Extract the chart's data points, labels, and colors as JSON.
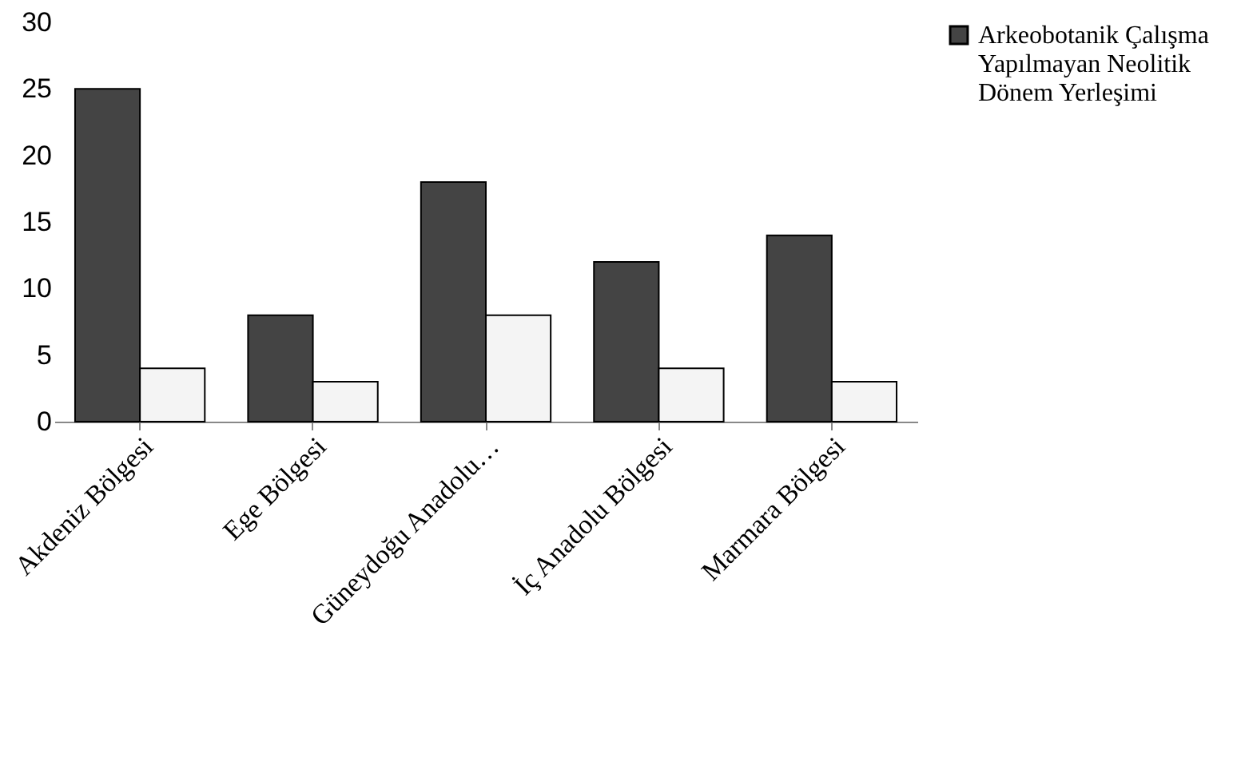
{
  "chart_data": {
    "type": "bar",
    "categories": [
      "Akdeniz Bölgesi",
      "Ege Bölgesi",
      "Güneydoğu Anadolu…",
      "İç Anadolu Bölgesi",
      "Marmara Bölgesi"
    ],
    "series": [
      {
        "name": "Arkeobotanik Çalışma Yapılmayan Neolitik Dönem Yerleşimi",
        "color": "#444444",
        "values": [
          25,
          8,
          18,
          12,
          14
        ]
      },
      {
        "color": "#f4f4f4",
        "values": [
          4,
          3,
          8,
          4,
          3
        ]
      }
    ],
    "ylim": [
      0,
      30
    ],
    "yticks": [
      0,
      5,
      10,
      15,
      20,
      25,
      30
    ],
    "grid": false,
    "legend": "right"
  }
}
